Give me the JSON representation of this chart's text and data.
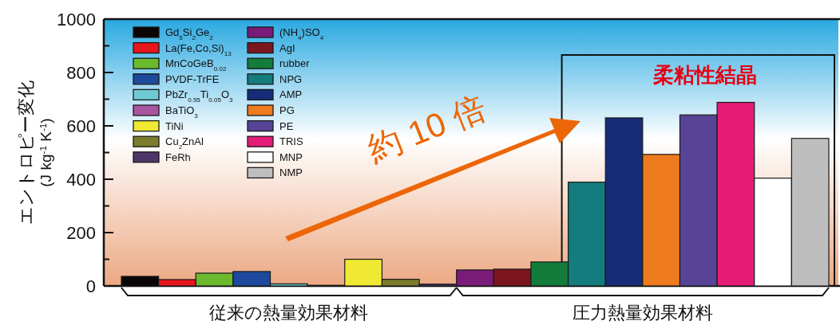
{
  "chart_data": {
    "type": "bar",
    "ylabel": "エントロピー変化\n(J kg$^{-1}$ K$^{-1}$)",
    "categories": [
      null
    ],
    "series": [
      {
        "name": "Gd$_{5}$Si$_{2}$Ge$_{2}$",
        "color": "#0a0606",
        "values": [
          36
        ]
      },
      {
        "name": "La(Fe,Co,Si)$_{13}$",
        "color": "#e8161c",
        "values": [
          24
        ]
      },
      {
        "name": "MnCoGeB$_{0.02}$",
        "color": "#6bba2e",
        "values": [
          48
        ]
      },
      {
        "name": "PVDF-TrFE",
        "color": "#1d4a9c",
        "values": [
          54
        ]
      },
      {
        "name": "PbZr$_{0.95}$Ti$_{0.05}$O$_{3}$",
        "color": "#6ec9d2",
        "values": [
          8
        ]
      },
      {
        "name": "BaTiO$_{3}$",
        "color": "#a955a0",
        "values": [
          2
        ]
      },
      {
        "name": "TiNi",
        "color": "#efe933",
        "values": [
          100
        ]
      },
      {
        "name": "Cu$_{2}$ZnAl",
        "color": "#7c7c2c",
        "values": [
          25
        ]
      },
      {
        "name": "FeRh",
        "color": "#4f3569",
        "values": [
          7
        ]
      },
      {
        "name": "(NH$_{4}$)SO$_{4}$",
        "color": "#7a1b78",
        "values": [
          60
        ]
      },
      {
        "name": "AgI",
        "color": "#7c161e",
        "values": [
          63
        ]
      },
      {
        "name": "rubber",
        "color": "#137c3a",
        "values": [
          90
        ]
      },
      {
        "name": "NPG",
        "color": "#147c7c",
        "values": [
          389
        ]
      },
      {
        "name": "AMP",
        "color": "#172c78",
        "values": [
          630
        ]
      },
      {
        "name": "PG",
        "color": "#ee7c1e",
        "values": [
          493
        ]
      },
      {
        "name": "PE",
        "color": "#584496",
        "values": [
          641
        ]
      },
      {
        "name": "TRIS",
        "color": "#e41c78",
        "values": [
          688
        ]
      },
      {
        "name": "MNP",
        "color": "#ffffff",
        "values": [
          404
        ]
      },
      {
        "name": "NMP",
        "color": "#bebebe",
        "values": [
          553
        ]
      }
    ],
    "ylim": [
      0,
      1000
    ],
    "yticks": [
      0,
      {
        "value": 100,
        "label": null
      },
      200,
      {
        "value": 300,
        "label": null
      },
      400,
      {
        "value": 500,
        "label": null
      },
      600,
      {
        "value": 700,
        "label": null
      },
      800,
      {
        "value": 900,
        "label": null
      },
      1000
    ],
    "legend": "top left",
    "annotations": [
      "約 10 倍",
      "柔粘性結晶",
      "従来の熱量効果材料",
      "圧力熱量効果材料"
    ]
  }
}
